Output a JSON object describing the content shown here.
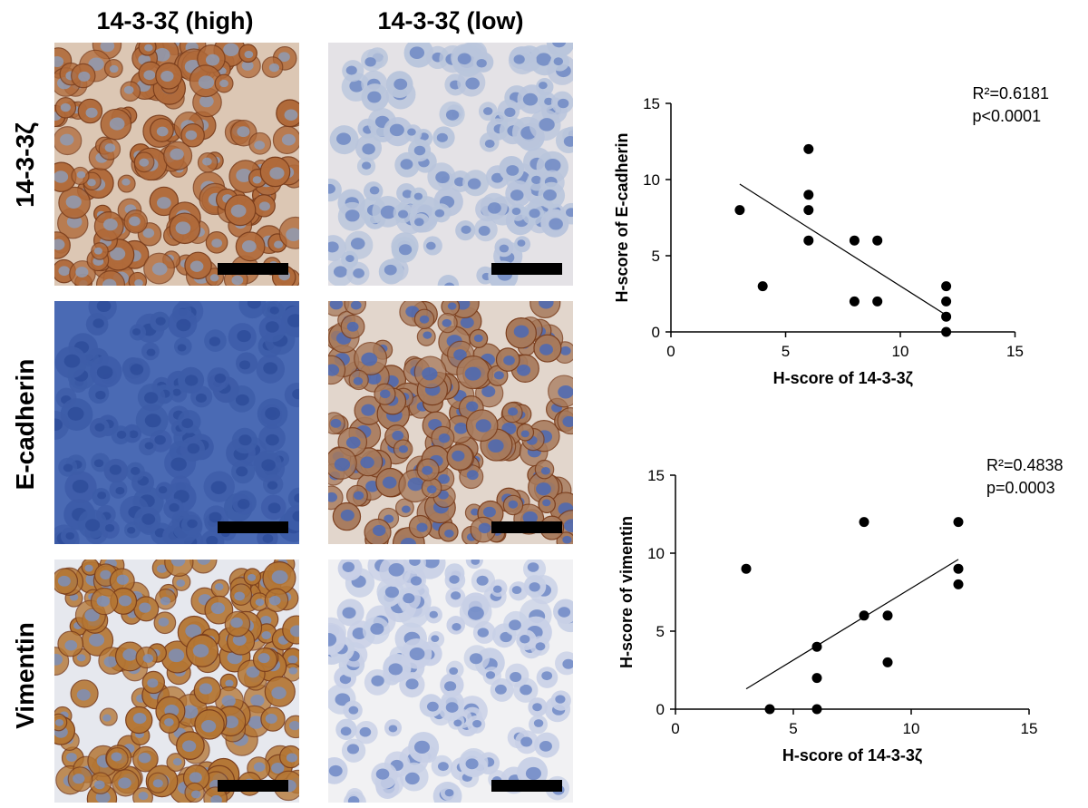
{
  "figure": {
    "column_titles": [
      "14-3-3ζ (high)",
      "14-3-3ζ (low)"
    ],
    "row_labels": [
      "14-3-3ζ",
      "E-cadherin",
      "Vimentin"
    ]
  },
  "panels": [
    {
      "row": 0,
      "col": 0,
      "stain": "strong",
      "bg": "#dcc7b4",
      "cell": "#b06a3a",
      "nucleus": "#8f9bb4"
    },
    {
      "row": 0,
      "col": 1,
      "stain": "weak",
      "bg": "#e4e2e6",
      "cell": "#b9c5dc",
      "nucleus": "#6f88c4"
    },
    {
      "row": 1,
      "col": 0,
      "stain": "weak",
      "bg": "#4a6ab4",
      "cell": "#3d5ca8",
      "nucleus": "#2e4c9a"
    },
    {
      "row": 1,
      "col": 1,
      "stain": "strong",
      "bg": "#e2d6cc",
      "cell": "#a77a5c",
      "nucleus": "#4a69b5"
    },
    {
      "row": 2,
      "col": 0,
      "stain": "strong",
      "bg": "#e6e8ee",
      "cell": "#b47634",
      "nucleus": "#7c8fb8"
    },
    {
      "row": 2,
      "col": 1,
      "stain": "weak",
      "bg": "#f1f1f3",
      "cell": "#c8d0e6",
      "nucleus": "#6f88c6"
    }
  ],
  "chart_data": [
    {
      "type": "scatter",
      "xlabel": "H-score of 14-3-3ζ",
      "ylabel": "H-score of E-cadherin",
      "xlim": [
        0,
        15
      ],
      "ylim": [
        0,
        15
      ],
      "xticks": [
        0,
        5,
        10,
        15
      ],
      "yticks": [
        0,
        5,
        10,
        15
      ],
      "annotation": [
        "R²=0.6181",
        "p<0.0001"
      ],
      "points": [
        [
          3,
          8
        ],
        [
          4,
          3
        ],
        [
          6,
          12
        ],
        [
          6,
          9
        ],
        [
          6,
          8
        ],
        [
          6,
          6
        ],
        [
          8,
          6
        ],
        [
          8,
          2
        ],
        [
          9,
          6
        ],
        [
          9,
          2
        ],
        [
          12,
          3
        ],
        [
          12,
          2
        ],
        [
          12,
          1
        ],
        [
          12,
          0
        ]
      ],
      "fit_line": [
        [
          3,
          9.7
        ],
        [
          12,
          1.1
        ]
      ]
    },
    {
      "type": "scatter",
      "xlabel": "H-score of 14-3-3ζ",
      "ylabel": "H-score of vimentin",
      "xlim": [
        0,
        15
      ],
      "ylim": [
        0,
        15
      ],
      "xticks": [
        0,
        5,
        10,
        15
      ],
      "yticks": [
        0,
        5,
        10,
        15
      ],
      "annotation": [
        "R²=0.4838",
        "p=0.0003"
      ],
      "points": [
        [
          3,
          9
        ],
        [
          4,
          0
        ],
        [
          6,
          4
        ],
        [
          6,
          2
        ],
        [
          6,
          0
        ],
        [
          8,
          12
        ],
        [
          8,
          6
        ],
        [
          9,
          6
        ],
        [
          9,
          3
        ],
        [
          12,
          12
        ],
        [
          12,
          9
        ],
        [
          12,
          8
        ]
      ],
      "fit_line": [
        [
          3,
          1.3
        ],
        [
          12,
          9.6
        ]
      ]
    }
  ]
}
